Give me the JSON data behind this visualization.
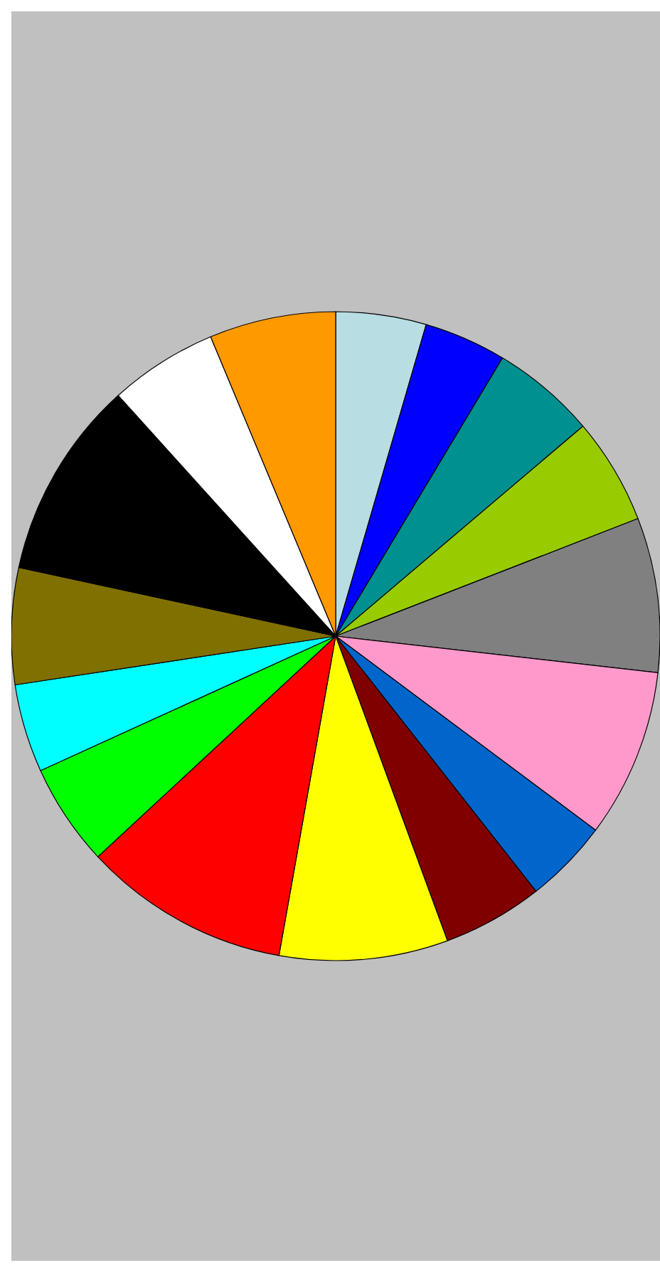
{
  "chart_data": {
    "type": "pie",
    "categories": [
      null,
      null,
      null,
      null,
      null,
      null,
      null,
      null,
      null,
      null,
      null,
      null,
      null,
      null,
      null,
      null
    ],
    "values": [
      4.5,
      4.1,
      5.2,
      5.3,
      7.7,
      8.4,
      4.2,
      5.0,
      8.4,
      10.3,
      5.1,
      4.4,
      5.8,
      9.9,
      5.4,
      6.3
    ],
    "colors": [
      "#b8dde2",
      "#0000ff",
      "#009090",
      "#99cc00",
      "#808080",
      "#ff99cc",
      "#0066cc",
      "#800000",
      "#ffff00",
      "#ff0000",
      "#00ff00",
      "#00ffff",
      "#807000",
      "#000000",
      "#ffffff",
      "#ff9900"
    ]
  }
}
